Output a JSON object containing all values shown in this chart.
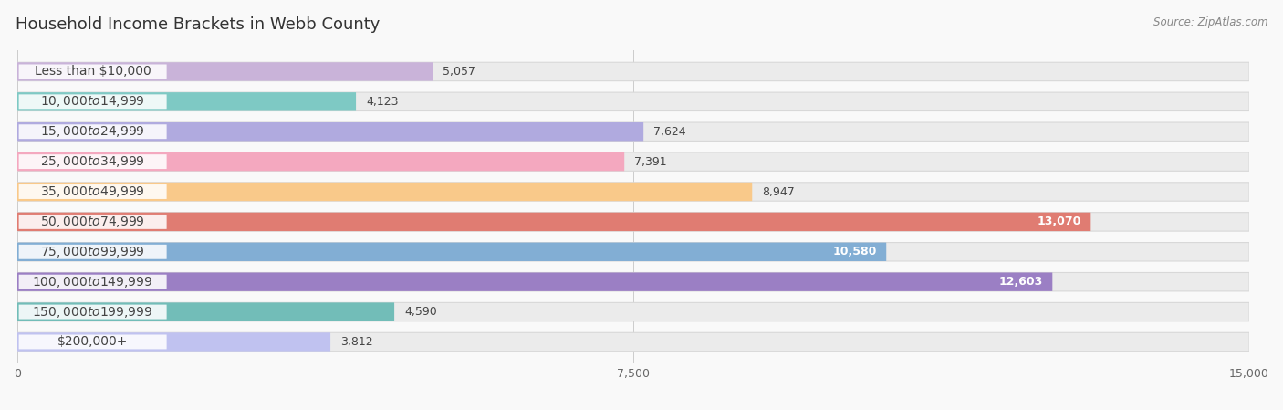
{
  "title": "Household Income Brackets in Webb County",
  "source": "Source: ZipAtlas.com",
  "categories": [
    "Less than $10,000",
    "$10,000 to $14,999",
    "$15,000 to $24,999",
    "$25,000 to $34,999",
    "$35,000 to $49,999",
    "$50,000 to $74,999",
    "$75,000 to $99,999",
    "$100,000 to $149,999",
    "$150,000 to $199,999",
    "$200,000+"
  ],
  "values": [
    5057,
    4123,
    7624,
    7391,
    8947,
    13070,
    10580,
    12603,
    4590,
    3812
  ],
  "bar_colors": [
    "#c9b3d9",
    "#7ec9c4",
    "#b0aadf",
    "#f4a8bf",
    "#f9c98a",
    "#e07c72",
    "#82aed4",
    "#9b7fc4",
    "#72bdb8",
    "#c0c2f0"
  ],
  "value_inside": [
    false,
    false,
    false,
    false,
    false,
    true,
    true,
    true,
    false,
    false
  ],
  "xlim": [
    0,
    15000
  ],
  "xticks": [
    0,
    7500,
    15000
  ],
  "xticklabels": [
    "0",
    "7,500",
    "15,000"
  ],
  "background_color": "#f9f9f9",
  "bar_bg_color": "#ebebeb",
  "title_fontsize": 13,
  "label_fontsize": 10,
  "value_fontsize": 9
}
